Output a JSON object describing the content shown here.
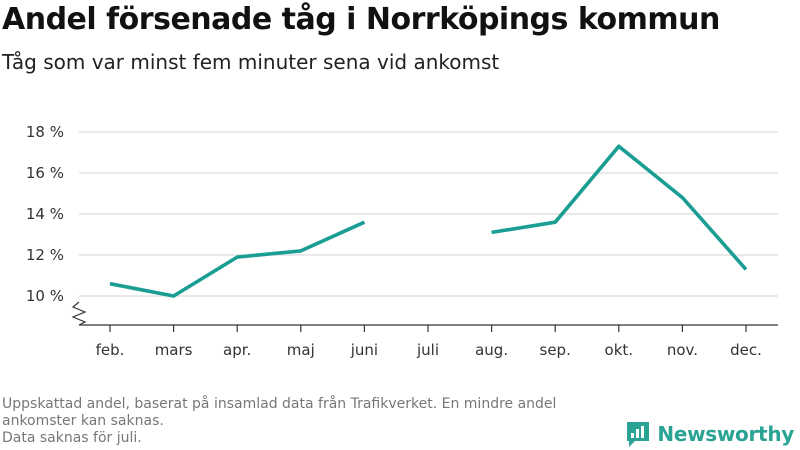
{
  "title": "Andel försenade tåg i Norrköpings kommun",
  "subtitle": "Tåg som var minst fem minuter sena vid ankomst",
  "footnote": {
    "line1": "Uppskattad andel, baserat på insamlad data från Trafikverket. En mindre andel ankomster kan saknas.",
    "line2": "Data saknas för juli."
  },
  "brand": {
    "name": "Newsworthy",
    "icon": "bar-chart-speech-icon",
    "color": "#2aa394"
  },
  "chart_data": {
    "type": "line",
    "categories": [
      "feb.",
      "mars",
      "apr.",
      "maj",
      "juni",
      "juli",
      "aug.",
      "sep.",
      "okt.",
      "nov.",
      "dec."
    ],
    "series": [
      {
        "values": [
          10.6,
          10.0,
          11.9,
          12.2,
          13.6,
          null,
          13.1,
          13.6,
          17.3,
          14.8,
          11.3
        ]
      }
    ],
    "y_ticks": [
      10,
      12,
      14,
      16,
      18
    ],
    "y_tick_labels": [
      "10 %",
      "12 %",
      "14 %",
      "16 %",
      "18 %"
    ],
    "ylim": [
      8.6,
      18.2
    ],
    "axis_break": true,
    "grid": true,
    "line_color": "#1a9d93"
  }
}
